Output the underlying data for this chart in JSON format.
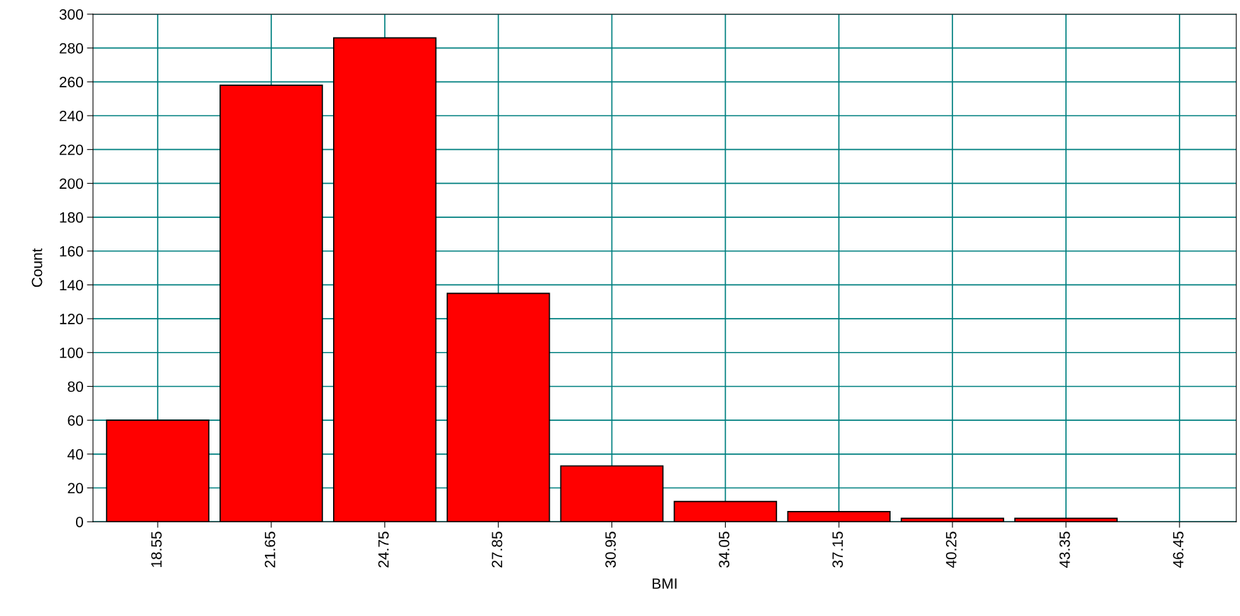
{
  "chart_data": {
    "type": "bar",
    "xlabel": "BMI",
    "ylabel": "Count",
    "categories": [
      "18.55",
      "21.65",
      "24.75",
      "27.85",
      "30.95",
      "34.05",
      "37.15",
      "40.25",
      "43.35",
      "46.45"
    ],
    "values": [
      60,
      258,
      286,
      135,
      33,
      12,
      6,
      2,
      2,
      0
    ],
    "color": "#ff0000",
    "ylim": [
      0,
      300
    ],
    "yticks": [
      0,
      20,
      40,
      60,
      80,
      100,
      120,
      140,
      160,
      180,
      200,
      220,
      240,
      260,
      280,
      300
    ],
    "grid": true
  }
}
